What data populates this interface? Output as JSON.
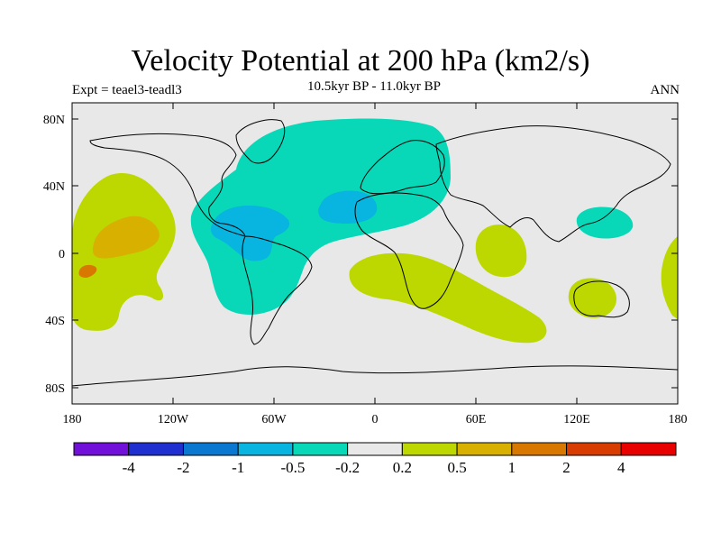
{
  "title": "Velocity Potential at 200 hPa (km2/s)",
  "subtitle": "10.5kyr BP - 11.0kyr BP",
  "left_label": "Expt = teael3-teadl3",
  "right_label": "ANN",
  "x_ticks": [
    "180",
    "120W",
    "60W",
    "0",
    "60E",
    "120E",
    "180"
  ],
  "y_ticks": [
    "80N",
    "40N",
    "0",
    "40S",
    "80S"
  ],
  "colorbar": {
    "colors": [
      "#7010d8",
      "#2030d0",
      "#0a78d0",
      "#08b4e0",
      "#08d8b8",
      "#e8e8e8",
      "#bcd800",
      "#d8b000",
      "#d87800",
      "#d83c00",
      "#e80000"
    ],
    "labels": [
      "-4",
      "-2",
      "-1",
      "-0.5",
      "-0.2",
      "0.2",
      "0.5",
      "1",
      "2",
      "4"
    ]
  },
  "chart_data": {
    "type": "heatmap",
    "title": "Velocity Potential at 200 hPa (km2/s)",
    "subtitle": "10.5kyr BP - 11.0kyr BP",
    "x_range": [
      -180,
      180
    ],
    "y_range": [
      -90,
      90
    ],
    "contour_levels": [
      -4,
      -2,
      -1,
      -0.5,
      -0.2,
      0.2,
      0.5,
      1,
      2,
      4
    ],
    "features": [
      {
        "region": "North Atlantic / Americas / Europe",
        "range": "-0.5 to -0.2"
      },
      {
        "region": "Caribbean",
        "range": "-1 to -0.5"
      },
      {
        "region": "Central Atlantic",
        "range": "-1 to -0.5"
      },
      {
        "region": "West Pacific near Philippines",
        "range": "-0.5 to -0.2"
      },
      {
        "region": "Central Pacific",
        "range": "0.2 to 0.5"
      },
      {
        "region": "Central Pacific core",
        "range": "0.5 to 1"
      },
      {
        "region": "South Atlantic / South Indian Ocean",
        "range": "0.2 to 0.5"
      },
      {
        "region": "Arabian Sea / Indian Ocean",
        "range": "0.2 to 0.5"
      },
      {
        "region": "Australia",
        "range": "0.2 to 0.5"
      }
    ]
  }
}
